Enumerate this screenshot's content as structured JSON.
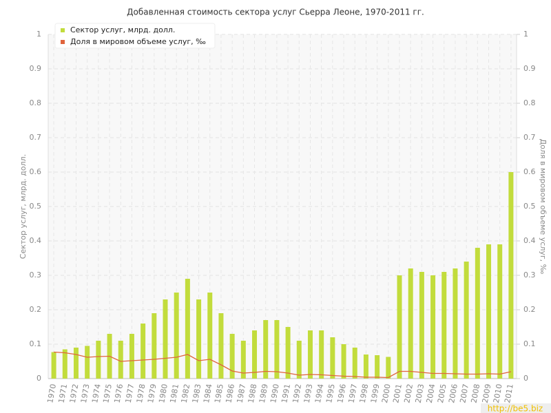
{
  "chart_data": {
    "type": "bar-line",
    "title": "Добавленная стоимость сектора услуг Сьерра Леоне, 1970-2011 гг.",
    "y_label": "Сектор услуг, млрд. долл.",
    "y2_label": "Доля в мировом объеме услуг, ‰",
    "watermark": "http://be5.biz",
    "categories": [
      "1970",
      "1971",
      "1972",
      "1973",
      "1974",
      "1975",
      "1976",
      "1977",
      "1978",
      "1979",
      "1980",
      "1981",
      "1982",
      "1983",
      "1984",
      "1985",
      "1986",
      "1987",
      "1988",
      "1989",
      "1990",
      "1991",
      "1992",
      "1993",
      "1994",
      "1995",
      "1996",
      "1997",
      "1998",
      "1999",
      "2000",
      "2001",
      "2002",
      "2003",
      "2004",
      "2005",
      "2006",
      "2007",
      "2008",
      "2009",
      "2010",
      "2011"
    ],
    "series": [
      {
        "name": "Сектор услуг, млрд. долл.",
        "color": "#c2dc3c",
        "kind": "bar",
        "values": [
          0.077,
          0.085,
          0.09,
          0.095,
          0.11,
          0.13,
          0.11,
          0.13,
          0.16,
          0.19,
          0.23,
          0.25,
          0.29,
          0.23,
          0.25,
          0.19,
          0.13,
          0.11,
          0.14,
          0.17,
          0.17,
          0.15,
          0.11,
          0.14,
          0.14,
          0.12,
          0.1,
          0.09,
          0.07,
          0.068,
          0.063,
          0.3,
          0.32,
          0.31,
          0.3,
          0.31,
          0.32,
          0.34,
          0.38,
          0.39,
          0.39,
          0.6
        ]
      },
      {
        "name": "Доля в мировом объеме услуг, ‰",
        "color": "#e0643c",
        "kind": "line",
        "axis": "y2",
        "values": [
          0.077,
          0.075,
          0.07,
          0.062,
          0.064,
          0.065,
          0.05,
          0.052,
          0.054,
          0.056,
          0.059,
          0.062,
          0.07,
          0.052,
          0.056,
          0.04,
          0.022,
          0.016,
          0.018,
          0.021,
          0.02,
          0.016,
          0.01,
          0.012,
          0.011,
          0.009,
          0.007,
          0.006,
          0.004,
          0.004,
          0.003,
          0.021,
          0.021,
          0.018,
          0.015,
          0.015,
          0.014,
          0.013,
          0.013,
          0.014,
          0.013,
          0.02
        ]
      }
    ],
    "ylim": [
      0,
      1
    ],
    "yticks": [
      0,
      0.1,
      0.2,
      0.3,
      0.4,
      0.5,
      0.6,
      0.7,
      0.8,
      0.9,
      1
    ],
    "y2lim": [
      0,
      1
    ],
    "y2ticks": [
      0,
      0.1,
      0.2,
      0.3,
      0.4,
      0.5,
      0.6,
      0.7,
      0.8,
      0.9,
      1
    ],
    "grid": true,
    "legend": "top-left"
  }
}
